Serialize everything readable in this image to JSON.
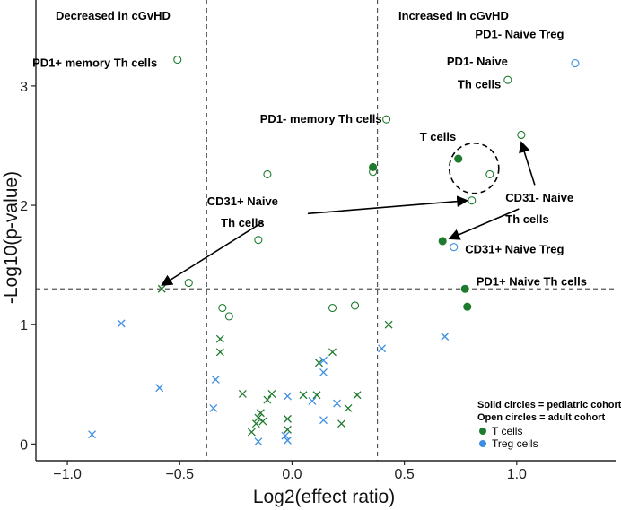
{
  "chart_data": {
    "type": "scatter",
    "xlabel": "Log2(effect ratio)",
    "ylabel": "-Log10(p-value)",
    "xlim": [
      -1.14,
      1.44
    ],
    "ylim": [
      -0.14,
      3.72
    ],
    "x_ticks": [
      {
        "value": -1.0,
        "label": "−1.0"
      },
      {
        "value": -0.5,
        "label": "−0.5"
      },
      {
        "value": 0.0,
        "label": "0.0"
      },
      {
        "value": 0.5,
        "label": "0.5"
      },
      {
        "value": 1.0,
        "label": "1.0"
      }
    ],
    "y_ticks": [
      {
        "value": 0,
        "label": "0"
      },
      {
        "value": 1,
        "label": "1"
      },
      {
        "value": 2,
        "label": "2"
      },
      {
        "value": 3,
        "label": "3"
      }
    ],
    "reference_lines": {
      "vertical": [
        -0.38,
        0.38
      ],
      "horizontal": [
        1.3
      ]
    },
    "region_labels": {
      "left": "Decreased in cGvHD",
      "right": "Increased in cGvHD"
    },
    "legend": {
      "notes": [
        "Solid circles = pediatric cohort",
        "Open circles = adult cohort"
      ],
      "entries": [
        {
          "label": "T cells",
          "color": "#1e7b2e"
        },
        {
          "label": "Treg cells",
          "color": "#3b8ee0"
        }
      ]
    },
    "colors": {
      "tcell": "#1e7b2e",
      "treg": "#3b8ee0"
    },
    "points": [
      {
        "x": -0.51,
        "y": 3.22,
        "cell": "tcell",
        "cohort": "adult",
        "marker": "circle"
      },
      {
        "x": 0.42,
        "y": 2.72,
        "cell": "tcell",
        "cohort": "adult",
        "marker": "circle"
      },
      {
        "x": 0.96,
        "y": 3.05,
        "cell": "tcell",
        "cohort": "adult",
        "marker": "circle"
      },
      {
        "x": 1.26,
        "y": 3.19,
        "cell": "treg",
        "cohort": "adult",
        "marker": "circle"
      },
      {
        "x": 1.02,
        "y": 2.59,
        "cell": "tcell",
        "cohort": "adult",
        "marker": "circle"
      },
      {
        "x": 0.88,
        "y": 2.26,
        "cell": "tcell",
        "cohort": "adult",
        "marker": "circle"
      },
      {
        "x": 0.8,
        "y": 2.04,
        "cell": "tcell",
        "cohort": "adult",
        "marker": "circle"
      },
      {
        "x": -0.11,
        "y": 2.26,
        "cell": "tcell",
        "cohort": "adult",
        "marker": "circle"
      },
      {
        "x": 0.36,
        "y": 2.28,
        "cell": "tcell",
        "cohort": "adult",
        "marker": "circle"
      },
      {
        "x": -0.15,
        "y": 1.71,
        "cell": "tcell",
        "cohort": "adult",
        "marker": "circle"
      },
      {
        "x": 0.72,
        "y": 1.65,
        "cell": "treg",
        "cohort": "adult",
        "marker": "circle"
      },
      {
        "x": -0.46,
        "y": 1.35,
        "cell": "tcell",
        "cohort": "adult",
        "marker": "circle"
      },
      {
        "x": -0.31,
        "y": 1.14,
        "cell": "tcell",
        "cohort": "adult",
        "marker": "circle"
      },
      {
        "x": -0.28,
        "y": 1.07,
        "cell": "tcell",
        "cohort": "adult",
        "marker": "circle"
      },
      {
        "x": 0.18,
        "y": 1.14,
        "cell": "tcell",
        "cohort": "adult",
        "marker": "circle"
      },
      {
        "x": 0.28,
        "y": 1.16,
        "cell": "tcell",
        "cohort": "adult",
        "marker": "circle"
      },
      {
        "x": 0.36,
        "y": 2.32,
        "cell": "tcell",
        "cohort": "pediatric",
        "marker": "circle"
      },
      {
        "x": 0.74,
        "y": 2.39,
        "cell": "tcell",
        "cohort": "pediatric",
        "marker": "circle"
      },
      {
        "x": 0.67,
        "y": 1.7,
        "cell": "tcell",
        "cohort": "pediatric",
        "marker": "circle"
      },
      {
        "x": 0.77,
        "y": 1.3,
        "cell": "tcell",
        "cohort": "pediatric",
        "marker": "circle"
      },
      {
        "x": 0.78,
        "y": 1.15,
        "cell": "tcell",
        "cohort": "pediatric",
        "marker": "circle"
      },
      {
        "x": -0.58,
        "y": 1.3,
        "cell": "tcell",
        "cohort": "",
        "marker": "x"
      },
      {
        "x": -0.76,
        "y": 1.01,
        "cell": "treg",
        "cohort": "",
        "marker": "x"
      },
      {
        "x": -0.59,
        "y": 0.47,
        "cell": "treg",
        "cohort": "",
        "marker": "x"
      },
      {
        "x": -0.89,
        "y": 0.08,
        "cell": "treg",
        "cohort": "",
        "marker": "x"
      },
      {
        "x": -0.32,
        "y": 0.88,
        "cell": "tcell",
        "cohort": "",
        "marker": "x"
      },
      {
        "x": -0.32,
        "y": 0.77,
        "cell": "tcell",
        "cohort": "",
        "marker": "x"
      },
      {
        "x": -0.34,
        "y": 0.54,
        "cell": "treg",
        "cohort": "",
        "marker": "x"
      },
      {
        "x": -0.35,
        "y": 0.3,
        "cell": "treg",
        "cohort": "",
        "marker": "x"
      },
      {
        "x": -0.22,
        "y": 0.42,
        "cell": "tcell",
        "cohort": "",
        "marker": "x"
      },
      {
        "x": -0.18,
        "y": 0.1,
        "cell": "tcell",
        "cohort": "",
        "marker": "x"
      },
      {
        "x": -0.16,
        "y": 0.17,
        "cell": "tcell",
        "cohort": "",
        "marker": "x"
      },
      {
        "x": -0.15,
        "y": 0.22,
        "cell": "tcell",
        "cohort": "",
        "marker": "x"
      },
      {
        "x": -0.14,
        "y": 0.26,
        "cell": "tcell",
        "cohort": "",
        "marker": "x"
      },
      {
        "x": -0.13,
        "y": 0.19,
        "cell": "tcell",
        "cohort": "",
        "marker": "x"
      },
      {
        "x": -0.15,
        "y": 0.02,
        "cell": "treg",
        "cohort": "",
        "marker": "x"
      },
      {
        "x": -0.11,
        "y": 0.37,
        "cell": "tcell",
        "cohort": "",
        "marker": "x"
      },
      {
        "x": -0.09,
        "y": 0.42,
        "cell": "tcell",
        "cohort": "",
        "marker": "x"
      },
      {
        "x": -0.02,
        "y": 0.4,
        "cell": "treg",
        "cohort": "",
        "marker": "x"
      },
      {
        "x": -0.02,
        "y": 0.21,
        "cell": "tcell",
        "cohort": "",
        "marker": "x"
      },
      {
        "x": -0.02,
        "y": 0.12,
        "cell": "tcell",
        "cohort": "",
        "marker": "x"
      },
      {
        "x": -0.03,
        "y": 0.07,
        "cell": "treg",
        "cohort": "",
        "marker": "x"
      },
      {
        "x": -0.02,
        "y": 0.03,
        "cell": "treg",
        "cohort": "",
        "marker": "x"
      },
      {
        "x": 0.05,
        "y": 0.41,
        "cell": "tcell",
        "cohort": "",
        "marker": "x"
      },
      {
        "x": 0.11,
        "y": 0.41,
        "cell": "tcell",
        "cohort": "",
        "marker": "x"
      },
      {
        "x": 0.12,
        "y": 0.68,
        "cell": "tcell",
        "cohort": "",
        "marker": "x"
      },
      {
        "x": 0.14,
        "y": 0.7,
        "cell": "treg",
        "cohort": "",
        "marker": "x"
      },
      {
        "x": 0.14,
        "y": 0.6,
        "cell": "treg",
        "cohort": "",
        "marker": "x"
      },
      {
        "x": 0.09,
        "y": 0.36,
        "cell": "treg",
        "cohort": "",
        "marker": "x"
      },
      {
        "x": 0.14,
        "y": 0.2,
        "cell": "treg",
        "cohort": "",
        "marker": "x"
      },
      {
        "x": 0.2,
        "y": 0.34,
        "cell": "treg",
        "cohort": "",
        "marker": "x"
      },
      {
        "x": 0.22,
        "y": 0.17,
        "cell": "tcell",
        "cohort": "",
        "marker": "x"
      },
      {
        "x": 0.25,
        "y": 0.3,
        "cell": "tcell",
        "cohort": "",
        "marker": "x"
      },
      {
        "x": 0.29,
        "y": 0.41,
        "cell": "tcell",
        "cohort": "",
        "marker": "x"
      },
      {
        "x": 0.18,
        "y": 0.77,
        "cell": "tcell",
        "cohort": "",
        "marker": "x"
      },
      {
        "x": 0.43,
        "y": 1.0,
        "cell": "tcell",
        "cohort": "",
        "marker": "x"
      },
      {
        "x": 0.4,
        "y": 0.8,
        "cell": "treg",
        "cohort": "",
        "marker": "x"
      },
      {
        "x": 0.68,
        "y": 0.9,
        "cell": "treg",
        "cohort": "",
        "marker": "x"
      }
    ],
    "annotations": [
      {
        "text": "PD1+ memory Th cells",
        "x": -0.6,
        "y": 3.16,
        "anchor": "end"
      },
      {
        "text": "PD1- memory Th cells",
        "x": 0.4,
        "y": 2.69,
        "anchor": "end"
      },
      {
        "text": "PD1- Naive Treg",
        "x": 1.21,
        "y": 3.4,
        "anchor": "end"
      },
      {
        "text": "PD1- Naive",
        "x": 0.96,
        "y": 3.17,
        "anchor": "end"
      },
      {
        "text": "Th cells",
        "x": 0.93,
        "y": 2.98,
        "anchor": "end"
      },
      {
        "text": "T cells",
        "x": 0.73,
        "y": 2.54,
        "anchor": "end"
      },
      {
        "text": "CD31- Naive",
        "x": 0.95,
        "y": 2.03,
        "anchor": "start"
      },
      {
        "text": "Th cells",
        "x": 0.95,
        "y": 1.85,
        "anchor": "start"
      },
      {
        "text": "CD31+ Naive",
        "x": -0.22,
        "y": 2.0,
        "anchor": "middle"
      },
      {
        "text": "Th cells",
        "x": -0.22,
        "y": 1.82,
        "anchor": "middle"
      },
      {
        "text": "CD31+ Naive Treg",
        "x": 0.77,
        "y": 1.6,
        "anchor": "start"
      },
      {
        "text": "PD1+ Naive Th cells",
        "x": 0.82,
        "y": 1.33,
        "anchor": "start"
      }
    ],
    "arrows": [
      {
        "from": [
          -0.13,
          1.86
        ],
        "to": [
          -0.58,
          1.33
        ]
      },
      {
        "from": [
          0.07,
          1.93
        ],
        "to": [
          0.78,
          2.04
        ]
      },
      {
        "from": [
          1.08,
          2.17
        ],
        "to": [
          1.02,
          2.53
        ]
      },
      {
        "from": [
          1.01,
          1.97
        ],
        "to": [
          0.7,
          1.72
        ]
      }
    ],
    "ellipse": {
      "cx": 0.81,
      "cy": 2.31,
      "rx": 0.11,
      "ry": 0.21
    }
  }
}
